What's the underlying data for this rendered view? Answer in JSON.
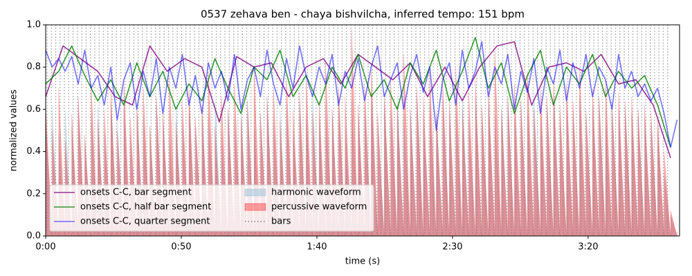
{
  "chart_data": {
    "type": "line",
    "title": "0537 zehava ben - chaya bishvilcha, inferred tempo: 151 bpm",
    "xlabel": "time (s)",
    "ylabel": "normalized values",
    "xlim": [
      0,
      233.7
    ],
    "ylim": [
      0,
      1
    ],
    "xticks": [
      {
        "value": 0,
        "label": "0:00"
      },
      {
        "value": 50,
        "label": "0:50"
      },
      {
        "value": 100,
        "label": "1:40"
      },
      {
        "value": 150,
        "label": "2:30"
      },
      {
        "value": 200,
        "label": "3:20"
      }
    ],
    "yticks": [
      {
        "value": 0,
        "label": "0.0"
      },
      {
        "value": 0.2,
        "label": "0.2"
      },
      {
        "value": 0.4,
        "label": "0.4"
      },
      {
        "value": 0.6,
        "label": "0.6"
      },
      {
        "value": 0.8,
        "label": "0.8"
      },
      {
        "value": 1,
        "label": "1.0"
      }
    ],
    "legend": "lower left",
    "series": [
      {
        "name": "onsets C-C, bar segment",
        "type": "line",
        "color": "#800080",
        "opacity": 0.8,
        "x": [
          0,
          6.4,
          12.8,
          19.2,
          25.6,
          32,
          38.4,
          44.8,
          51.2,
          57.6,
          64,
          70.4,
          76.8,
          83.2,
          89.6,
          96,
          102.4,
          108.8,
          115.2,
          121.6,
          128,
          134.4,
          140.8,
          147.2,
          153.6,
          160,
          166.4,
          172.8,
          179.2,
          185.6,
          192,
          198.4,
          204.8,
          211.2,
          217.6,
          224,
          230.4
        ],
        "values": [
          0.66,
          0.9,
          0.84,
          0.78,
          0.66,
          0.62,
          0.9,
          0.78,
          0.84,
          0.8,
          0.54,
          0.85,
          0.8,
          0.82,
          0.66,
          0.8,
          0.84,
          0.72,
          0.86,
          0.8,
          0.74,
          0.82,
          0.66,
          0.8,
          0.64,
          0.8,
          0.9,
          0.92,
          0.62,
          0.8,
          0.82,
          0.78,
          0.86,
          0.72,
          0.74,
          0.62,
          0.37
        ]
      },
      {
        "name": "onsets C-C, half bar segment",
        "type": "line",
        "color": "#008000",
        "opacity": 0.8,
        "x": [
          0,
          4.8,
          9.6,
          14.4,
          19.2,
          24,
          28.8,
          33.6,
          38.4,
          43.2,
          48,
          52.8,
          57.6,
          62.4,
          67.2,
          72,
          76.8,
          81.6,
          86.4,
          91.2,
          96,
          100.8,
          105.6,
          110.4,
          115.2,
          120,
          124.8,
          129.6,
          134.4,
          139.2,
          144,
          148.8,
          153.6,
          158.4,
          163.2,
          168,
          172.8,
          177.6,
          182.4,
          187.2,
          192,
          196.8,
          201.6,
          206.4,
          211.2,
          216,
          220.8,
          225.6,
          230.4
        ],
        "values": [
          0.72,
          0.78,
          0.9,
          0.76,
          0.64,
          0.74,
          0.62,
          0.82,
          0.66,
          0.78,
          0.6,
          0.72,
          0.64,
          0.84,
          0.7,
          0.58,
          0.8,
          0.74,
          0.88,
          0.66,
          0.76,
          0.62,
          0.8,
          0.7,
          0.86,
          0.66,
          0.74,
          0.6,
          0.82,
          0.72,
          0.88,
          0.64,
          0.78,
          0.94,
          0.7,
          0.82,
          0.58,
          0.76,
          0.88,
          0.62,
          0.8,
          0.72,
          0.86,
          0.66,
          0.78,
          0.7,
          0.76,
          0.62,
          0.42
        ]
      },
      {
        "name": "onsets C-C, quarter segment",
        "type": "line",
        "color": "#0000ff",
        "opacity": 0.55,
        "x": [
          0,
          2.4,
          4.8,
          7.2,
          9.6,
          12,
          14.4,
          16.8,
          19.2,
          21.6,
          24,
          26.4,
          28.8,
          31.2,
          33.6,
          36,
          38.4,
          40.8,
          43.2,
          45.6,
          48,
          50.4,
          52.8,
          55.2,
          57.6,
          60,
          62.4,
          64.8,
          67.2,
          69.6,
          72,
          74.4,
          76.8,
          79.2,
          81.6,
          84,
          86.4,
          88.8,
          91.2,
          93.6,
          96,
          98.4,
          100.8,
          103.2,
          105.6,
          108,
          110.4,
          112.8,
          115.2,
          117.6,
          120,
          122.4,
          124.8,
          127.2,
          129.6,
          132,
          134.4,
          136.8,
          139.2,
          141.6,
          144,
          146.4,
          148.8,
          151.2,
          153.6,
          156,
          158.4,
          160.8,
          163.2,
          165.6,
          168,
          170.4,
          172.8,
          175.2,
          177.6,
          180,
          182.4,
          184.8,
          187.2,
          189.6,
          192,
          194.4,
          196.8,
          199.2,
          201.6,
          204,
          206.4,
          208.8,
          211.2,
          213.6,
          216,
          218.4,
          220.8,
          223.2,
          225.6,
          228,
          230.4,
          232.8
        ],
        "values": [
          0.88,
          0.8,
          0.84,
          0.78,
          0.85,
          0.72,
          0.88,
          0.7,
          0.76,
          0.62,
          0.8,
          0.55,
          0.74,
          0.82,
          0.6,
          0.78,
          0.66,
          0.84,
          0.58,
          0.8,
          0.7,
          0.86,
          0.62,
          0.76,
          0.58,
          0.82,
          0.7,
          0.78,
          0.64,
          0.86,
          0.6,
          0.74,
          0.8,
          0.66,
          0.88,
          0.72,
          0.62,
          0.84,
          0.7,
          0.9,
          0.76,
          0.66,
          0.8,
          0.72,
          0.86,
          0.62,
          0.78,
          0.7,
          0.84,
          0.64,
          0.8,
          0.9,
          0.66,
          0.74,
          0.82,
          0.6,
          0.76,
          0.86,
          0.68,
          0.8,
          0.5,
          0.74,
          0.82,
          0.62,
          0.88,
          0.7,
          0.78,
          0.92,
          0.66,
          0.8,
          0.72,
          0.86,
          0.6,
          0.78,
          0.68,
          0.84,
          0.58,
          0.8,
          0.72,
          0.88,
          0.64,
          0.82,
          0.7,
          0.86,
          0.66,
          0.8,
          0.74,
          0.6,
          0.86,
          0.7,
          0.78,
          0.66,
          0.72,
          0.64,
          0.7,
          0.58,
          0.42,
          0.55
        ]
      },
      {
        "name": "harmonic waveform",
        "type": "area",
        "color": "#9fc3d8",
        "opacity": 0.55,
        "x": [
          0,
          2.4,
          4.8,
          7.2,
          9.6,
          12,
          14.4,
          16.8,
          19.2,
          21.6,
          24,
          26.4,
          28.8,
          31.2,
          33.6,
          36,
          38.4,
          40.8,
          43.2,
          45.6,
          48,
          50.4,
          52.8,
          55.2,
          57.6,
          60,
          62.4,
          64.8,
          67.2,
          69.6,
          72,
          74.4,
          76.8,
          79.2,
          81.6,
          84,
          86.4,
          88.8,
          91.2,
          93.6,
          96,
          98.4,
          100.8,
          103.2,
          105.6,
          108,
          110.4,
          112.8,
          115.2,
          117.6,
          120,
          122.4,
          124.8,
          127.2,
          129.6,
          132,
          134.4,
          136.8,
          139.2,
          141.6,
          144,
          146.4,
          148.8,
          151.2,
          153.6,
          156,
          158.4,
          160.8,
          163.2,
          165.6,
          168,
          170.4,
          172.8,
          175.2,
          177.6,
          180,
          182.4,
          184.8,
          187.2,
          189.6,
          192,
          194.4,
          196.8,
          199.2,
          201.6,
          204,
          206.4,
          208.8,
          211.2,
          213.6,
          216,
          218.4,
          220.8,
          223.2,
          225.6,
          228,
          230.4,
          232.8
        ],
        "values": [
          0.55,
          0.62,
          0.48,
          0.6,
          0.52,
          0.64,
          0.45,
          0.58,
          0.62,
          0.5,
          0.66,
          0.55,
          0.6,
          0.48,
          0.63,
          0.57,
          0.52,
          0.65,
          0.58,
          0.5,
          0.62,
          0.56,
          0.64,
          0.52,
          0.6,
          0.58,
          0.66,
          0.5,
          0.62,
          0.55,
          0.6,
          0.64,
          0.52,
          0.58,
          0.66,
          0.54,
          0.6,
          0.62,
          0.5,
          0.64,
          0.58,
          0.68,
          0.55,
          0.62,
          0.6,
          0.66,
          0.52,
          0.64,
          0.58,
          0.62,
          0.68,
          0.56,
          0.64,
          0.6,
          0.66,
          0.58,
          0.62,
          0.7,
          0.56,
          0.64,
          0.6,
          0.66,
          0.58,
          0.62,
          0.68,
          0.56,
          0.64,
          0.6,
          0.66,
          0.58,
          0.62,
          0.66,
          0.56,
          0.64,
          0.6,
          0.68,
          0.58,
          0.62,
          0.66,
          0.56,
          0.64,
          0.6,
          0.66,
          0.58,
          0.62,
          0.68,
          0.56,
          0.64,
          0.6,
          0.62,
          0.58,
          0.6,
          0.56,
          0.54,
          0.5,
          0.3,
          0.1,
          0.02
        ]
      },
      {
        "name": "percussive waveform",
        "type": "area",
        "color": "#ff0000",
        "opacity": 0.35,
        "x": [
          0,
          2.4,
          4.8,
          7.2,
          9.6,
          12,
          14.4,
          16.8,
          19.2,
          21.6,
          24,
          26.4,
          28.8,
          31.2,
          33.6,
          36,
          38.4,
          40.8,
          43.2,
          45.6,
          48,
          50.4,
          52.8,
          55.2,
          57.6,
          60,
          62.4,
          64.8,
          67.2,
          69.6,
          72,
          74.4,
          76.8,
          79.2,
          81.6,
          84,
          86.4,
          88.8,
          91.2,
          93.6,
          96,
          98.4,
          100.8,
          103.2,
          105.6,
          108,
          110.4,
          112.8,
          115.2,
          117.6,
          120,
          122.4,
          124.8,
          127.2,
          129.6,
          132,
          134.4,
          136.8,
          139.2,
          141.6,
          144,
          146.4,
          148.8,
          151.2,
          153.6,
          156,
          158.4,
          160.8,
          163.2,
          165.6,
          168,
          170.4,
          172.8,
          175.2,
          177.6,
          180,
          182.4,
          184.8,
          187.2,
          189.6,
          192,
          194.4,
          196.8,
          199.2,
          201.6,
          204,
          206.4,
          208.8,
          211.2,
          213.6,
          216,
          218.4,
          220.8,
          223.2,
          225.6,
          228,
          230.4,
          232.8
        ],
        "values": [
          0.62,
          0.5,
          0.7,
          0.45,
          0.58,
          0.66,
          0.48,
          0.72,
          0.55,
          0.6,
          0.68,
          0.5,
          0.74,
          0.56,
          0.62,
          0.7,
          0.52,
          0.66,
          0.58,
          0.76,
          0.54,
          0.64,
          0.7,
          0.56,
          0.62,
          0.78,
          0.52,
          0.66,
          0.6,
          0.72,
          0.56,
          0.64,
          0.8,
          0.58,
          0.66,
          0.7,
          0.54,
          0.74,
          0.6,
          0.68,
          0.76,
          0.58,
          0.64,
          0.82,
          0.6,
          0.7,
          0.66,
          0.98,
          0.62,
          0.72,
          0.8,
          0.58,
          0.68,
          0.74,
          0.62,
          0.86,
          0.6,
          0.7,
          0.66,
          0.78,
          0.58,
          0.72,
          0.64,
          0.8,
          0.6,
          0.68,
          0.74,
          0.62,
          0.7,
          0.88,
          0.6,
          0.66,
          0.72,
          0.64,
          0.78,
          0.6,
          0.7,
          0.66,
          0.74,
          0.62,
          0.72,
          0.64,
          0.8,
          0.6,
          0.7,
          0.66,
          0.74,
          0.62,
          0.68,
          0.64,
          0.66,
          0.6,
          0.62,
          0.58,
          0.56,
          0.4,
          0.12,
          0.02
        ]
      },
      {
        "name": "bars",
        "type": "vlines",
        "color": "#808080",
        "opacity": 0.9,
        "x": [
          0.5,
          2.1,
          3.7,
          5.3,
          6.9,
          8.5,
          10.1,
          11.7,
          13.3,
          14.9,
          16.5,
          18.1,
          19.7,
          21.3,
          22.9,
          24.5,
          26.1,
          27.7,
          29.3,
          30.9,
          32.5,
          34.1,
          35.7,
          37.3,
          38.9,
          40.5,
          42.1,
          43.7,
          45.3,
          46.9,
          48.5,
          50.1,
          51.7,
          53.3,
          54.9,
          56.5,
          58.1,
          59.7,
          61.3,
          62.9,
          64.5,
          66.1,
          67.7,
          69.3,
          70.9,
          72.5,
          74.1,
          75.7,
          77.3,
          78.9,
          80.5,
          82.1,
          83.7,
          85.3,
          86.9,
          88.5,
          90.1,
          91.7,
          93.3,
          94.9,
          96.5,
          98.1,
          99.7,
          101.3,
          102.9,
          104.5,
          106.1,
          107.7,
          109.3,
          110.9,
          112.5,
          114.1,
          115.7,
          117.3,
          118.9,
          120.5,
          122.1,
          123.7,
          125.3,
          126.9,
          128.5,
          130.1,
          131.7,
          133.3,
          134.9,
          136.5,
          138.1,
          139.7,
          141.3,
          142.9,
          144.5,
          146.1,
          147.7,
          149.3,
          150.9,
          152.5,
          154.1,
          155.7,
          157.3,
          158.9,
          160.5,
          162.1,
          163.7,
          165.3,
          166.9,
          168.5,
          170.1,
          171.7,
          173.3,
          174.9,
          176.5,
          178.1,
          179.7,
          181.3,
          182.9,
          184.5,
          186.1,
          187.7,
          189.3,
          190.9,
          192.5,
          194.1,
          195.7,
          197.3,
          198.9,
          200.5,
          202.1,
          203.7,
          205.3,
          206.9,
          208.5,
          210.1,
          211.7,
          213.3,
          214.9,
          216.5,
          218.1,
          219.7,
          221.3,
          222.9,
          224.5,
          226.1,
          227.7,
          229.3
        ]
      }
    ]
  }
}
